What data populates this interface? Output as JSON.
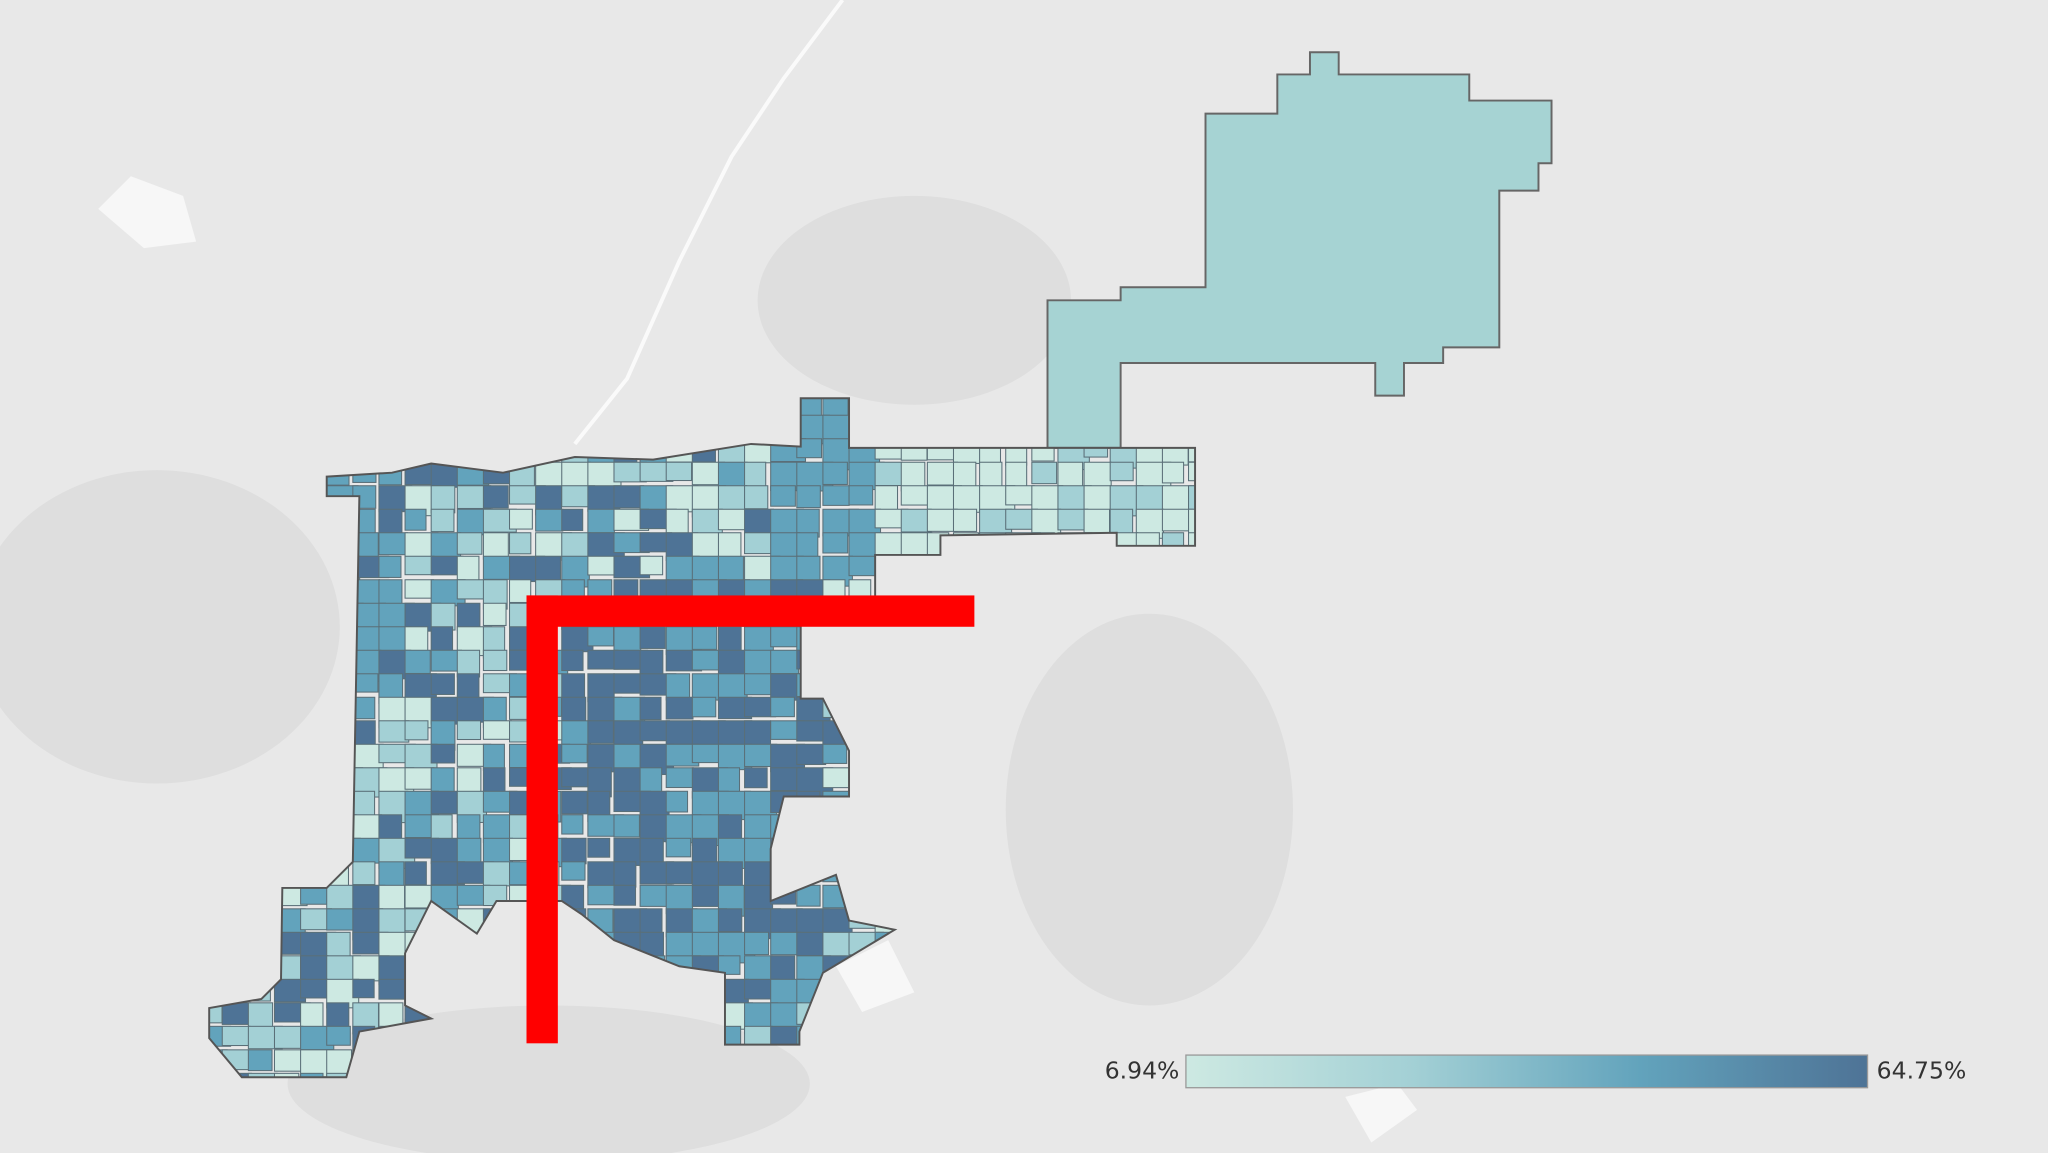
{
  "legend": {
    "min": {
      "value": 6.94,
      "label": "6.94%"
    },
    "max": {
      "value": 64.75,
      "label": "64.75%"
    },
    "colors": [
      "#cde9e2",
      "#a3d0d5",
      "#62a3bc",
      "#4e7396"
    ]
  }
}
